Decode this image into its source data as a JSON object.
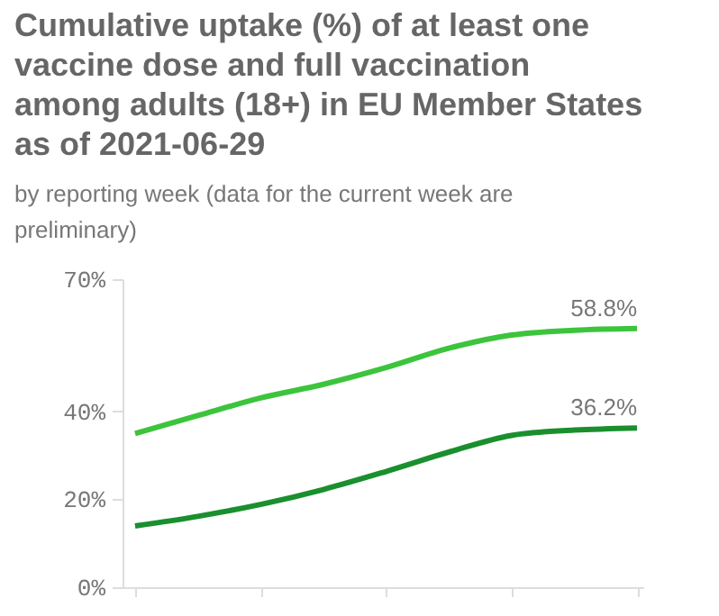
{
  "chart_data": {
    "type": "line",
    "title": "Cumulative uptake (%) of at least one vaccine dose and full vaccination among adults (18+) in EU Member States as of 2021-06-29",
    "subtitle": "by reporting week (data for the current week are preliminary)",
    "categories": [
      null,
      null,
      null,
      null,
      null,
      null,
      null,
      null,
      null
    ],
    "series": [
      {
        "color": "#3cc43c",
        "values": [
          34.9,
          39.0,
          43.0,
          46.1,
          49.9,
          54.3,
          57.3,
          58.4,
          58.8
        ],
        "value_labels": [
          null,
          null,
          null,
          null,
          null,
          null,
          null,
          null,
          "58.8%"
        ]
      },
      {
        "color": "#1a8f2e",
        "values": [
          13.9,
          16.1,
          18.8,
          22.2,
          26.3,
          30.7,
          34.5,
          35.7,
          36.2
        ],
        "value_labels": [
          null,
          null,
          null,
          null,
          null,
          null,
          null,
          null,
          "36.2%"
        ]
      }
    ],
    "ylim": [
      0,
      70
    ],
    "yticks": [
      {
        "value": 0,
        "label": "0%"
      },
      {
        "value": 20,
        "label": "20%"
      },
      {
        "value": 40,
        "label": "40%"
      },
      {
        "value": 70,
        "label": "70%"
      }
    ],
    "tick_labels": "y",
    "grid": false,
    "marker": "none",
    "line_style": "solid"
  }
}
